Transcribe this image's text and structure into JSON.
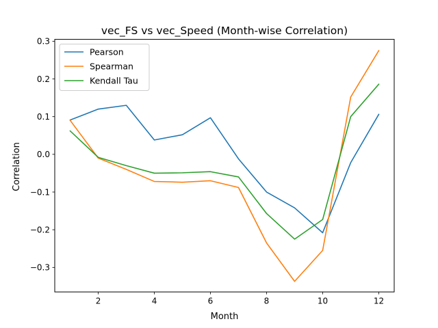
{
  "chart_data": {
    "type": "line",
    "title": "vec_FS vs vec_Speed (Month-wise Correlation)",
    "xlabel": "Month",
    "ylabel": "Correlation",
    "x": [
      1,
      2,
      3,
      4,
      5,
      6,
      7,
      8,
      9,
      10,
      11,
      12
    ],
    "xlim": [
      0.45,
      12.55
    ],
    "ylim": [
      -0.365,
      0.305
    ],
    "xticks": [
      2,
      4,
      6,
      8,
      10,
      12
    ],
    "xtick_labels": [
      "2",
      "4",
      "6",
      "8",
      "10",
      "12"
    ],
    "yticks": [
      -0.3,
      -0.2,
      -0.1,
      0.0,
      0.1,
      0.2,
      0.3
    ],
    "ytick_labels": [
      "−0.3",
      "−0.2",
      "−0.1",
      "0.0",
      "0.1",
      "0.2",
      "0.3"
    ],
    "grid": false,
    "legend_position": "upper-left",
    "series": [
      {
        "name": "Pearson",
        "color": "#1f77b4",
        "values": [
          0.091,
          0.12,
          0.13,
          0.038,
          0.052,
          0.097,
          -0.012,
          -0.1,
          -0.142,
          -0.208,
          -0.022,
          0.106
        ]
      },
      {
        "name": "Spearman",
        "color": "#ff7f0e",
        "values": [
          0.09,
          -0.01,
          -0.04,
          -0.072,
          -0.074,
          -0.07,
          -0.088,
          -0.235,
          -0.337,
          -0.255,
          0.152,
          0.275
        ]
      },
      {
        "name": "Kendall Tau",
        "color": "#2ca02c",
        "values": [
          0.062,
          -0.008,
          -0.03,
          -0.05,
          -0.049,
          -0.046,
          -0.06,
          -0.157,
          -0.225,
          -0.173,
          0.1,
          0.186
        ]
      }
    ]
  }
}
